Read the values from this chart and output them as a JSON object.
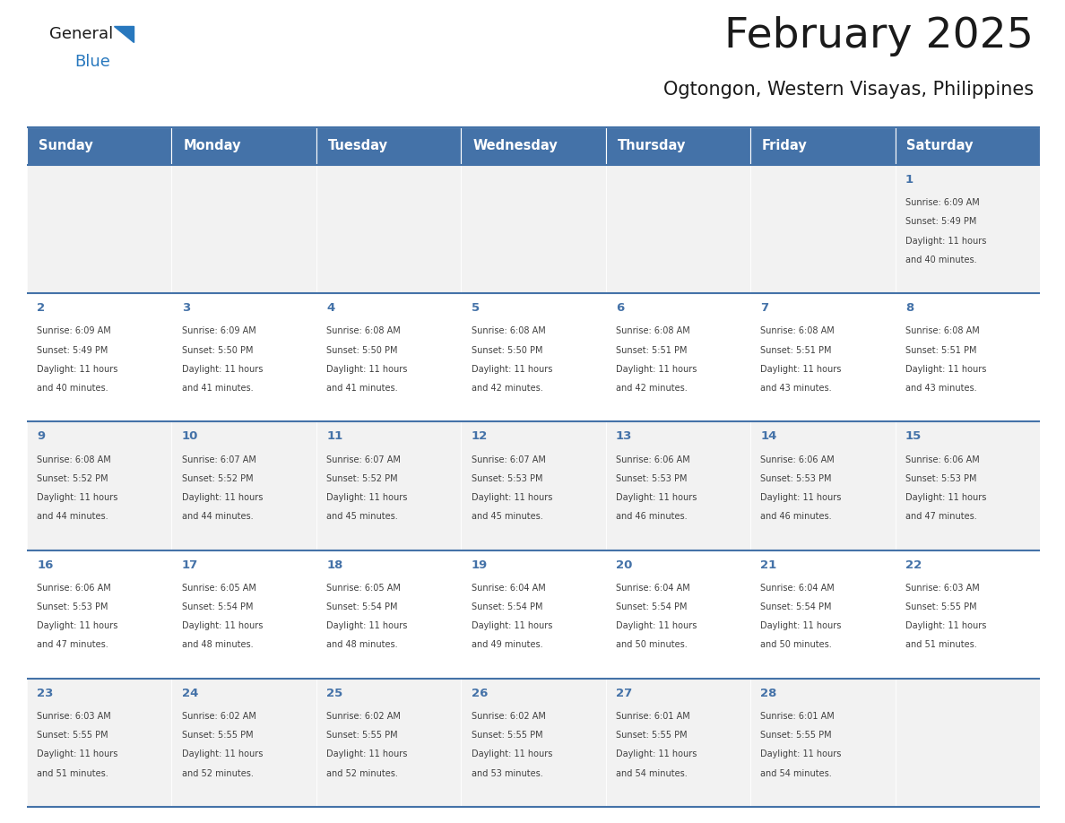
{
  "title": "February 2025",
  "subtitle": "Ogtongon, Western Visayas, Philippines",
  "header_bg_color": "#4472a8",
  "header_text_color": "#ffffff",
  "header_font_size": 10.5,
  "day_names": [
    "Sunday",
    "Monday",
    "Tuesday",
    "Wednesday",
    "Thursday",
    "Friday",
    "Saturday"
  ],
  "title_font_size": 34,
  "subtitle_font_size": 15,
  "cell_bg_even": "#f2f2f2",
  "cell_bg_odd": "#ffffff",
  "day_number_color": "#4472a8",
  "info_text_color": "#404040",
  "divider_color": "#4472a8",
  "logo_general_color": "#1a1a1a",
  "logo_blue_color": "#2878be",
  "calendar_data": [
    [
      null,
      null,
      null,
      null,
      null,
      null,
      {
        "day": 1,
        "sunrise": "6:09 AM",
        "sunset": "5:49 PM",
        "daylight_line1": "Daylight: 11 hours",
        "daylight_line2": "and 40 minutes."
      }
    ],
    [
      {
        "day": 2,
        "sunrise": "6:09 AM",
        "sunset": "5:49 PM",
        "daylight_line1": "Daylight: 11 hours",
        "daylight_line2": "and 40 minutes."
      },
      {
        "day": 3,
        "sunrise": "6:09 AM",
        "sunset": "5:50 PM",
        "daylight_line1": "Daylight: 11 hours",
        "daylight_line2": "and 41 minutes."
      },
      {
        "day": 4,
        "sunrise": "6:08 AM",
        "sunset": "5:50 PM",
        "daylight_line1": "Daylight: 11 hours",
        "daylight_line2": "and 41 minutes."
      },
      {
        "day": 5,
        "sunrise": "6:08 AM",
        "sunset": "5:50 PM",
        "daylight_line1": "Daylight: 11 hours",
        "daylight_line2": "and 42 minutes."
      },
      {
        "day": 6,
        "sunrise": "6:08 AM",
        "sunset": "5:51 PM",
        "daylight_line1": "Daylight: 11 hours",
        "daylight_line2": "and 42 minutes."
      },
      {
        "day": 7,
        "sunrise": "6:08 AM",
        "sunset": "5:51 PM",
        "daylight_line1": "Daylight: 11 hours",
        "daylight_line2": "and 43 minutes."
      },
      {
        "day": 8,
        "sunrise": "6:08 AM",
        "sunset": "5:51 PM",
        "daylight_line1": "Daylight: 11 hours",
        "daylight_line2": "and 43 minutes."
      }
    ],
    [
      {
        "day": 9,
        "sunrise": "6:08 AM",
        "sunset": "5:52 PM",
        "daylight_line1": "Daylight: 11 hours",
        "daylight_line2": "and 44 minutes."
      },
      {
        "day": 10,
        "sunrise": "6:07 AM",
        "sunset": "5:52 PM",
        "daylight_line1": "Daylight: 11 hours",
        "daylight_line2": "and 44 minutes."
      },
      {
        "day": 11,
        "sunrise": "6:07 AM",
        "sunset": "5:52 PM",
        "daylight_line1": "Daylight: 11 hours",
        "daylight_line2": "and 45 minutes."
      },
      {
        "day": 12,
        "sunrise": "6:07 AM",
        "sunset": "5:53 PM",
        "daylight_line1": "Daylight: 11 hours",
        "daylight_line2": "and 45 minutes."
      },
      {
        "day": 13,
        "sunrise": "6:06 AM",
        "sunset": "5:53 PM",
        "daylight_line1": "Daylight: 11 hours",
        "daylight_line2": "and 46 minutes."
      },
      {
        "day": 14,
        "sunrise": "6:06 AM",
        "sunset": "5:53 PM",
        "daylight_line1": "Daylight: 11 hours",
        "daylight_line2": "and 46 minutes."
      },
      {
        "day": 15,
        "sunrise": "6:06 AM",
        "sunset": "5:53 PM",
        "daylight_line1": "Daylight: 11 hours",
        "daylight_line2": "and 47 minutes."
      }
    ],
    [
      {
        "day": 16,
        "sunrise": "6:06 AM",
        "sunset": "5:53 PM",
        "daylight_line1": "Daylight: 11 hours",
        "daylight_line2": "and 47 minutes."
      },
      {
        "day": 17,
        "sunrise": "6:05 AM",
        "sunset": "5:54 PM",
        "daylight_line1": "Daylight: 11 hours",
        "daylight_line2": "and 48 minutes."
      },
      {
        "day": 18,
        "sunrise": "6:05 AM",
        "sunset": "5:54 PM",
        "daylight_line1": "Daylight: 11 hours",
        "daylight_line2": "and 48 minutes."
      },
      {
        "day": 19,
        "sunrise": "6:04 AM",
        "sunset": "5:54 PM",
        "daylight_line1": "Daylight: 11 hours",
        "daylight_line2": "and 49 minutes."
      },
      {
        "day": 20,
        "sunrise": "6:04 AM",
        "sunset": "5:54 PM",
        "daylight_line1": "Daylight: 11 hours",
        "daylight_line2": "and 50 minutes."
      },
      {
        "day": 21,
        "sunrise": "6:04 AM",
        "sunset": "5:54 PM",
        "daylight_line1": "Daylight: 11 hours",
        "daylight_line2": "and 50 minutes."
      },
      {
        "day": 22,
        "sunrise": "6:03 AM",
        "sunset": "5:55 PM",
        "daylight_line1": "Daylight: 11 hours",
        "daylight_line2": "and 51 minutes."
      }
    ],
    [
      {
        "day": 23,
        "sunrise": "6:03 AM",
        "sunset": "5:55 PM",
        "daylight_line1": "Daylight: 11 hours",
        "daylight_line2": "and 51 minutes."
      },
      {
        "day": 24,
        "sunrise": "6:02 AM",
        "sunset": "5:55 PM",
        "daylight_line1": "Daylight: 11 hours",
        "daylight_line2": "and 52 minutes."
      },
      {
        "day": 25,
        "sunrise": "6:02 AM",
        "sunset": "5:55 PM",
        "daylight_line1": "Daylight: 11 hours",
        "daylight_line2": "and 52 minutes."
      },
      {
        "day": 26,
        "sunrise": "6:02 AM",
        "sunset": "5:55 PM",
        "daylight_line1": "Daylight: 11 hours",
        "daylight_line2": "and 53 minutes."
      },
      {
        "day": 27,
        "sunrise": "6:01 AM",
        "sunset": "5:55 PM",
        "daylight_line1": "Daylight: 11 hours",
        "daylight_line2": "and 54 minutes."
      },
      {
        "day": 28,
        "sunrise": "6:01 AM",
        "sunset": "5:55 PM",
        "daylight_line1": "Daylight: 11 hours",
        "daylight_line2": "and 54 minutes."
      },
      null
    ]
  ]
}
